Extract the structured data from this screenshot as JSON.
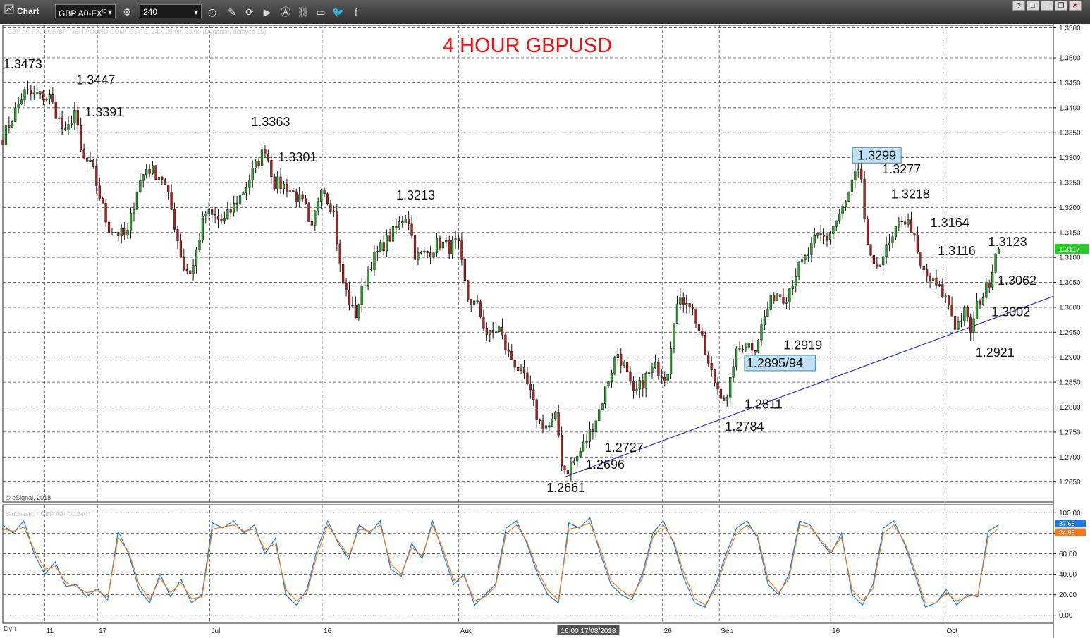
{
  "window": {
    "title": "Chart",
    "symbol": "GBP A0-FX",
    "symbol_sup": "IS",
    "interval": "240",
    "buttons": [
      "?",
      "□",
      "–",
      "❐",
      "✕"
    ]
  },
  "chart_data": [
    {
      "type": "candlestick",
      "title": "4 HOUR GBPUSD",
      "subtitle": "GBP A0-FX, EUR/BRITISH POUND COMPOSITE, 240, 09:00, 13:00 (Dynamic, delayed 15)",
      "copyright": "© eSignal, 2018",
      "ylim": [
        1.261,
        1.3565
      ],
      "y_ticks": [
        1.265,
        1.27,
        1.275,
        1.28,
        1.285,
        1.29,
        1.295,
        1.3,
        1.305,
        1.31,
        1.315,
        1.32,
        1.325,
        1.33,
        1.335,
        1.34,
        1.345,
        1.35,
        1.356
      ],
      "y_tick_labels": [
        "1.2650",
        "1.2700",
        "1.2750",
        "1.2800",
        "1.2850",
        "1.2900",
        "1.2950",
        "1.3000",
        "1.3050",
        "1.3100",
        "1.3150",
        "1.3200",
        "1.3250",
        "1.3300",
        "1.3350",
        "1.3400",
        "1.3450",
        "1.3500",
        "1.3560"
      ],
      "current_price": 1.3117,
      "current_price_label": "1.3117",
      "trendline": [
        [
          0.536,
          1.2661
        ],
        [
          1.0,
          1.3022
        ]
      ],
      "anchors": [
        [
          0.0,
          1.334
        ],
        [
          0.02,
          1.343
        ],
        [
          0.045,
          1.342
        ],
        [
          0.06,
          1.334
        ],
        [
          0.068,
          1.34
        ],
        [
          0.075,
          1.33
        ],
        [
          0.085,
          1.328
        ],
        [
          0.1,
          1.316
        ],
        [
          0.118,
          1.314
        ],
        [
          0.128,
          1.324
        ],
        [
          0.137,
          1.328
        ],
        [
          0.152,
          1.326
        ],
        [
          0.16,
          1.32
        ],
        [
          0.172,
          1.308
        ],
        [
          0.18,
          1.307
        ],
        [
          0.192,
          1.319
        ],
        [
          0.21,
          1.317
        ],
        [
          0.228,
          1.323
        ],
        [
          0.24,
          1.328
        ],
        [
          0.25,
          1.332
        ],
        [
          0.258,
          1.325
        ],
        [
          0.272,
          1.324
        ],
        [
          0.288,
          1.32
        ],
        [
          0.293,
          1.314
        ],
        [
          0.303,
          1.325
        ],
        [
          0.315,
          1.319
        ],
        [
          0.322,
          1.306
        ],
        [
          0.335,
          1.298
        ],
        [
          0.348,
          1.308
        ],
        [
          0.36,
          1.312
        ],
        [
          0.372,
          1.315
        ],
        [
          0.385,
          1.319
        ],
        [
          0.393,
          1.31
        ],
        [
          0.405,
          1.311
        ],
        [
          0.415,
          1.313
        ],
        [
          0.425,
          1.312
        ],
        [
          0.433,
          1.313
        ],
        [
          0.442,
          1.302
        ],
        [
          0.452,
          1.3
        ],
        [
          0.462,
          1.294
        ],
        [
          0.472,
          1.296
        ],
        [
          0.48,
          1.291
        ],
        [
          0.49,
          1.288
        ],
        [
          0.5,
          1.284
        ],
        [
          0.51,
          1.277
        ],
        [
          0.52,
          1.276
        ],
        [
          0.527,
          1.278
        ],
        [
          0.532,
          1.269
        ],
        [
          0.536,
          1.267
        ],
        [
          0.547,
          1.27
        ],
        [
          0.557,
          1.274
        ],
        [
          0.567,
          1.279
        ],
        [
          0.577,
          1.286
        ],
        [
          0.585,
          1.291
        ],
        [
          0.592,
          1.288
        ],
        [
          0.6,
          1.282
        ],
        [
          0.612,
          1.286
        ],
        [
          0.622,
          1.288
        ],
        [
          0.632,
          1.286
        ],
        [
          0.64,
          1.3
        ],
        [
          0.652,
          1.302
        ],
        [
          0.662,
          1.296
        ],
        [
          0.672,
          1.288
        ],
        [
          0.68,
          1.284
        ],
        [
          0.69,
          1.281
        ],
        [
          0.696,
          1.29
        ],
        [
          0.706,
          1.293
        ],
        [
          0.716,
          1.292
        ],
        [
          0.725,
          1.298
        ],
        [
          0.735,
          1.303
        ],
        [
          0.745,
          1.302
        ],
        [
          0.755,
          1.307
        ],
        [
          0.765,
          1.31
        ],
        [
          0.775,
          1.314
        ],
        [
          0.785,
          1.314
        ],
        [
          0.795,
          1.318
        ],
        [
          0.803,
          1.321
        ],
        [
          0.81,
          1.326
        ],
        [
          0.816,
          1.327
        ],
        [
          0.822,
          1.314
        ],
        [
          0.828,
          1.307
        ],
        [
          0.836,
          1.31
        ],
        [
          0.846,
          1.313
        ],
        [
          0.856,
          1.318
        ],
        [
          0.865,
          1.316
        ],
        [
          0.873,
          1.308
        ],
        [
          0.88,
          1.306
        ],
        [
          0.89,
          1.304
        ],
        [
          0.9,
          1.301
        ],
        [
          0.907,
          1.296
        ],
        [
          0.915,
          1.299
        ],
        [
          0.922,
          1.295
        ],
        [
          0.928,
          1.301
        ],
        [
          0.935,
          1.303
        ],
        [
          0.94,
          1.306
        ],
        [
          0.945,
          1.311
        ],
        [
          0.948,
          1.3117
        ]
      ],
      "x_labels": [
        {
          "label": "11",
          "pos": 0.04
        },
        {
          "label": "17",
          "pos": 0.09
        },
        {
          "label": "Jul",
          "pos": 0.197
        },
        {
          "label": "16",
          "pos": 0.304
        },
        {
          "label": "Aug",
          "pos": 0.434
        },
        {
          "label": "16:00 17/08/2018",
          "pos": 0.552
        },
        {
          "label": "26",
          "pos": 0.628
        },
        {
          "label": "Sep",
          "pos": 0.682
        },
        {
          "label": "16",
          "pos": 0.788
        },
        {
          "label": "Oct",
          "pos": 0.897
        }
      ],
      "annotations": [
        {
          "text": "1.3473",
          "pos": 0.019,
          "value": 1.3473,
          "align": "center",
          "boxed": false
        },
        {
          "text": "1.3447",
          "pos": 0.07,
          "value": 1.3447,
          "align": "start",
          "boxed": false
        },
        {
          "text": "1.3391",
          "pos": 0.078,
          "value": 1.3391,
          "align": "start",
          "boxed": false
        },
        {
          "text": "1.3363",
          "pos": 0.255,
          "value": 1.3363,
          "align": "center",
          "boxed": false
        },
        {
          "text": "1.3301",
          "pos": 0.262,
          "value": 1.3301,
          "align": "start",
          "boxed": false
        },
        {
          "text": "1.3213",
          "pos": 0.393,
          "value": 1.3213,
          "align": "center",
          "boxed": false
        },
        {
          "text": "1.2727",
          "pos": 0.573,
          "value": 1.2727,
          "align": "start",
          "boxed": false
        },
        {
          "text": "1.2696",
          "pos": 0.555,
          "value": 1.2696,
          "align": "start",
          "boxed": false
        },
        {
          "text": "1.2661",
          "pos": 0.536,
          "value": 1.2661,
          "align": "center",
          "boxed": false
        },
        {
          "text": "1.2919",
          "pos": 0.743,
          "value": 1.2919,
          "align": "start",
          "boxed": false
        },
        {
          "text": "1.2895/94",
          "pos": 0.708,
          "value": 1.2894,
          "align": "start",
          "boxed": true
        },
        {
          "text": "1.2811",
          "pos": 0.706,
          "value": 1.2811,
          "align": "start",
          "boxed": false
        },
        {
          "text": "1.2784",
          "pos": 0.706,
          "value": 1.2784,
          "align": "center",
          "boxed": false
        },
        {
          "text": "1.3299",
          "pos": 0.832,
          "value": 1.3299,
          "align": "center",
          "boxed": true
        },
        {
          "text": "1.3277",
          "pos": 0.837,
          "value": 1.3277,
          "align": "start",
          "boxed": false
        },
        {
          "text": "1.3218",
          "pos": 0.864,
          "value": 1.3218,
          "align": "center",
          "boxed": false
        },
        {
          "text": "1.3164",
          "pos": 0.883,
          "value": 1.3164,
          "align": "start",
          "boxed": false
        },
        {
          "text": "1.3116",
          "pos": 0.89,
          "value": 1.3116,
          "align": "start",
          "boxed": false
        },
        {
          "text": "1.3123",
          "pos": 0.938,
          "value": 1.3123,
          "align": "start",
          "boxed": false
        },
        {
          "text": "1.3062",
          "pos": 0.947,
          "value": 1.3062,
          "align": "start",
          "boxed": false
        },
        {
          "text": "1.3002",
          "pos": 0.941,
          "value": 1.3002,
          "align": "start",
          "boxed": false
        },
        {
          "text": "1.2921",
          "pos": 0.926,
          "value": 1.2921,
          "align": "start",
          "boxed": false
        }
      ]
    },
    {
      "type": "line",
      "title": "Stochastic - GBP A0-FX, 240",
      "ylim": [
        -5,
        105
      ],
      "y_ticks": [
        0,
        20,
        40,
        60,
        80,
        100
      ],
      "y_tick_labels": [
        "0.00",
        "20.00",
        "40.00",
        "60.00",
        "80.00",
        "100.00"
      ],
      "last_values": [
        87.66,
        84.69
      ],
      "last_value_labels": [
        "87.66",
        "84.69"
      ],
      "series": [
        {
          "color": "#1f77e0",
          "values": [
            88,
            80,
            92,
            60,
            40,
            52,
            28,
            30,
            18,
            26,
            15,
            82,
            60,
            25,
            12,
            40,
            18,
            35,
            12,
            20,
            90,
            85,
            92,
            80,
            88,
            60,
            75,
            20,
            10,
            25,
            65,
            92,
            70,
            55,
            88,
            80,
            92,
            45,
            38,
            70,
            55,
            92,
            60,
            30,
            40,
            10,
            20,
            30,
            85,
            92,
            70,
            40,
            20,
            12,
            90,
            85,
            95,
            60,
            30,
            20,
            15,
            40,
            80,
            92,
            70,
            35,
            12,
            8,
            30,
            60,
            85,
            92,
            75,
            30,
            20,
            40,
            92,
            88,
            72,
            60,
            80,
            20,
            10,
            30,
            85,
            92,
            70,
            40,
            8,
            12,
            25,
            10,
            20,
            18,
            82,
            88
          ]
        },
        {
          "color": "#f07a1a",
          "values": [
            84,
            82,
            86,
            64,
            45,
            48,
            32,
            28,
            22,
            24,
            18,
            76,
            62,
            30,
            15,
            36,
            22,
            32,
            16,
            18,
            84,
            86,
            88,
            82,
            84,
            64,
            70,
            25,
            14,
            22,
            60,
            88,
            72,
            58,
            84,
            82,
            88,
            50,
            40,
            66,
            58,
            88,
            64,
            34,
            38,
            14,
            18,
            28,
            80,
            88,
            72,
            44,
            24,
            15,
            84,
            86,
            90,
            64,
            34,
            24,
            18,
            36,
            76,
            88,
            72,
            40,
            16,
            10,
            26,
            56,
            80,
            88,
            78,
            35,
            22,
            36,
            88,
            86,
            74,
            62,
            76,
            25,
            14,
            26,
            80,
            88,
            72,
            44,
            12,
            12,
            22,
            14,
            18,
            20,
            76,
            85
          ]
        }
      ]
    }
  ],
  "status": {
    "dyn_label": "Dyn"
  }
}
